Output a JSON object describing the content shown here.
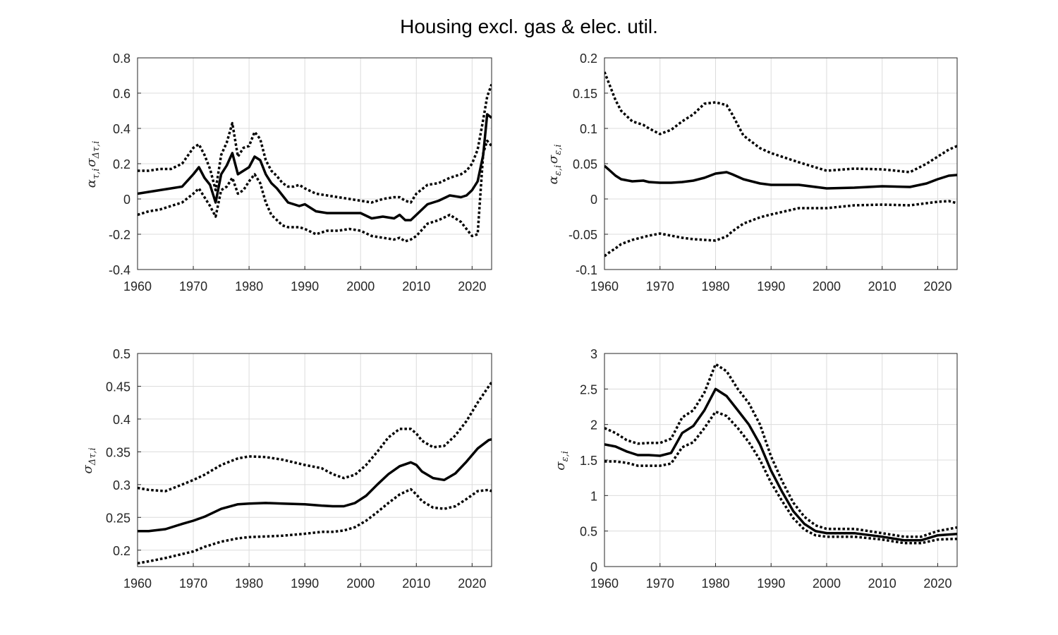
{
  "title": "Housing excl. gas & elec. util.",
  "chart_data": [
    {
      "type": "line",
      "ylabel": "α τ,i σ Δτ,i",
      "ylabel_parts": {
        "a": "α",
        "a_sub": "τ,i",
        "b": "σ",
        "b_sub": "Δτ,i"
      },
      "xlim": [
        1960,
        2023.5
      ],
      "ylim": [
        -0.4,
        0.8
      ],
      "xticks": [
        1960,
        1970,
        1980,
        1990,
        2000,
        2010,
        2020
      ],
      "yticks": [
        -0.4,
        -0.2,
        0,
        0.2,
        0.4,
        0.6,
        0.8
      ],
      "ytick_labels": [
        "-0.4",
        "-0.2",
        "0",
        "0.2",
        "0.4",
        "0.6",
        "0.8"
      ],
      "grid": true,
      "x": [
        1960,
        1962,
        1964,
        1966,
        1968,
        1970,
        1971,
        1972,
        1973,
        1974,
        1975,
        1976,
        1977,
        1978,
        1979,
        1980,
        1981,
        1982,
        1983,
        1984,
        1985,
        1986,
        1987,
        1988,
        1989,
        1990,
        1992,
        1994,
        1996,
        1998,
        2000,
        2002,
        2004,
        2006,
        2007,
        2008,
        2009,
        2010,
        2012,
        2014,
        2016,
        2018,
        2019,
        2020,
        2021,
        2022,
        2022.7,
        2023.5
      ],
      "series": [
        {
          "role": "median",
          "style": "solid",
          "values": [
            0.03,
            0.04,
            0.05,
            0.06,
            0.07,
            0.14,
            0.18,
            0.12,
            0.08,
            -0.02,
            0.14,
            0.19,
            0.26,
            0.14,
            0.16,
            0.18,
            0.24,
            0.22,
            0.14,
            0.09,
            0.06,
            0.02,
            -0.02,
            -0.03,
            -0.04,
            -0.03,
            -0.07,
            -0.08,
            -0.08,
            -0.08,
            -0.08,
            -0.11,
            -0.1,
            -0.11,
            -0.09,
            -0.12,
            -0.12,
            -0.09,
            -0.03,
            -0.01,
            0.02,
            0.01,
            0.02,
            0.05,
            0.1,
            0.25,
            0.48,
            0.46
          ]
        },
        {
          "role": "upper",
          "style": "dotted",
          "values": [
            0.16,
            0.16,
            0.17,
            0.17,
            0.2,
            0.29,
            0.31,
            0.25,
            0.17,
            0.05,
            0.25,
            0.32,
            0.43,
            0.24,
            0.29,
            0.3,
            0.38,
            0.34,
            0.22,
            0.16,
            0.13,
            0.09,
            0.07,
            0.07,
            0.08,
            0.06,
            0.03,
            0.02,
            0.01,
            0.0,
            -0.01,
            -0.02,
            0.0,
            0.01,
            0.01,
            -0.01,
            -0.02,
            0.03,
            0.08,
            0.09,
            0.12,
            0.14,
            0.16,
            0.2,
            0.28,
            0.45,
            0.58,
            0.65
          ]
        },
        {
          "role": "lower",
          "style": "dotted",
          "values": [
            -0.09,
            -0.07,
            -0.06,
            -0.04,
            -0.02,
            0.03,
            0.06,
            0.01,
            -0.04,
            -0.1,
            0.05,
            0.07,
            0.12,
            0.03,
            0.05,
            0.1,
            0.14,
            0.09,
            -0.02,
            -0.09,
            -0.12,
            -0.15,
            -0.16,
            -0.16,
            -0.16,
            -0.17,
            -0.2,
            -0.18,
            -0.18,
            -0.17,
            -0.18,
            -0.21,
            -0.22,
            -0.23,
            -0.22,
            -0.24,
            -0.23,
            -0.21,
            -0.14,
            -0.12,
            -0.09,
            -0.13,
            -0.17,
            -0.21,
            -0.2,
            0.26,
            0.33,
            0.3
          ]
        }
      ]
    },
    {
      "type": "line",
      "ylabel": "α ε,i σ ε,i",
      "ylabel_parts": {
        "a": "α",
        "a_sub": "ε,i",
        "b": "σ",
        "b_sub": "ε,i"
      },
      "xlim": [
        1960,
        2023.5
      ],
      "ylim": [
        -0.1,
        0.2
      ],
      "xticks": [
        1960,
        1970,
        1980,
        1990,
        2000,
        2010,
        2020
      ],
      "yticks": [
        -0.1,
        -0.05,
        0,
        0.05,
        0.1,
        0.15,
        0.2
      ],
      "ytick_labels": [
        "-0.1",
        "-0.05",
        "0",
        "0.05",
        "0.1",
        "0.15",
        "0.2"
      ],
      "grid": true,
      "x": [
        1960,
        1961,
        1962,
        1963,
        1965,
        1967,
        1968,
        1970,
        1972,
        1974,
        1976,
        1978,
        1980,
        1982,
        1983,
        1985,
        1988,
        1990,
        1995,
        2000,
        2005,
        2010,
        2015,
        2018,
        2020,
        2022,
        2023.5
      ],
      "series": [
        {
          "role": "median",
          "style": "solid",
          "values": [
            0.047,
            0.04,
            0.033,
            0.028,
            0.025,
            0.026,
            0.024,
            0.023,
            0.023,
            0.024,
            0.026,
            0.03,
            0.036,
            0.038,
            0.035,
            0.028,
            0.022,
            0.02,
            0.02,
            0.015,
            0.016,
            0.018,
            0.017,
            0.022,
            0.028,
            0.033,
            0.034
          ]
        },
        {
          "role": "upper",
          "style": "dotted",
          "values": [
            0.18,
            0.16,
            0.14,
            0.125,
            0.11,
            0.105,
            0.1,
            0.092,
            0.098,
            0.11,
            0.12,
            0.135,
            0.137,
            0.133,
            0.12,
            0.09,
            0.072,
            0.065,
            0.052,
            0.04,
            0.043,
            0.042,
            0.038,
            0.05,
            0.06,
            0.07,
            0.075
          ]
        },
        {
          "role": "lower",
          "style": "dotted",
          "values": [
            -0.081,
            -0.075,
            -0.07,
            -0.064,
            -0.058,
            -0.054,
            -0.052,
            -0.049,
            -0.052,
            -0.055,
            -0.057,
            -0.058,
            -0.059,
            -0.053,
            -0.046,
            -0.035,
            -0.026,
            -0.022,
            -0.013,
            -0.013,
            -0.009,
            -0.008,
            -0.009,
            -0.006,
            -0.004,
            -0.003,
            -0.006
          ]
        }
      ]
    },
    {
      "type": "line",
      "ylabel": "σ Δτ,i",
      "ylabel_parts": {
        "a": "σ",
        "a_sub": "Δτ,i",
        "b": "",
        "b_sub": ""
      },
      "xlim": [
        1960,
        2023.5
      ],
      "ylim": [
        0.175,
        0.5
      ],
      "xticks": [
        1960,
        1970,
        1980,
        1990,
        2000,
        2010,
        2020
      ],
      "yticks": [
        0.2,
        0.25,
        0.3,
        0.35,
        0.4,
        0.45,
        0.5
      ],
      "ytick_labels": [
        "0.2",
        "0.25",
        "0.3",
        "0.35",
        "0.4",
        "0.45",
        "0.5"
      ],
      "grid": true,
      "x": [
        1960,
        1962,
        1965,
        1968,
        1970,
        1972,
        1975,
        1978,
        1980,
        1983,
        1986,
        1990,
        1993,
        1995,
        1997,
        1999,
        2001,
        2003,
        2005,
        2007,
        2009,
        2010,
        2011,
        2013,
        2015,
        2017,
        2019,
        2021,
        2023,
        2023.5
      ],
      "series": [
        {
          "role": "median",
          "style": "solid",
          "values": [
            0.229,
            0.229,
            0.232,
            0.24,
            0.245,
            0.251,
            0.263,
            0.27,
            0.271,
            0.272,
            0.271,
            0.27,
            0.268,
            0.267,
            0.267,
            0.272,
            0.283,
            0.3,
            0.316,
            0.328,
            0.334,
            0.33,
            0.32,
            0.31,
            0.307,
            0.317,
            0.335,
            0.355,
            0.368,
            0.369
          ]
        },
        {
          "role": "upper",
          "style": "dotted",
          "values": [
            0.295,
            0.292,
            0.29,
            0.3,
            0.307,
            0.315,
            0.33,
            0.34,
            0.343,
            0.342,
            0.338,
            0.33,
            0.325,
            0.316,
            0.31,
            0.315,
            0.33,
            0.35,
            0.372,
            0.385,
            0.385,
            0.378,
            0.367,
            0.357,
            0.359,
            0.375,
            0.397,
            0.425,
            0.45,
            0.456
          ]
        },
        {
          "role": "lower",
          "style": "dotted",
          "values": [
            0.18,
            0.183,
            0.188,
            0.194,
            0.198,
            0.205,
            0.213,
            0.218,
            0.22,
            0.221,
            0.222,
            0.225,
            0.228,
            0.228,
            0.23,
            0.235,
            0.245,
            0.258,
            0.272,
            0.285,
            0.293,
            0.285,
            0.275,
            0.265,
            0.263,
            0.267,
            0.278,
            0.29,
            0.292,
            0.29
          ]
        }
      ]
    },
    {
      "type": "line",
      "ylabel": "σ ε,i",
      "ylabel_parts": {
        "a": "σ",
        "a_sub": "ε,i",
        "b": "",
        "b_sub": ""
      },
      "xlim": [
        1960,
        2023.5
      ],
      "ylim": [
        0,
        3
      ],
      "xticks": [
        1960,
        1970,
        1980,
        1990,
        2000,
        2010,
        2020
      ],
      "yticks": [
        0,
        0.5,
        1,
        1.5,
        2,
        2.5,
        3
      ],
      "ytick_labels": [
        "0",
        "0.5",
        "1",
        "1.5",
        "2",
        "2.5",
        "3"
      ],
      "grid": true,
      "x": [
        1960,
        1962,
        1964,
        1966,
        1968,
        1970,
        1972,
        1974,
        1976,
        1978,
        1980,
        1982,
        1984,
        1986,
        1988,
        1990,
        1992,
        1994,
        1996,
        1998,
        2000,
        2005,
        2010,
        2014,
        2017,
        2020,
        2023.5
      ],
      "series": [
        {
          "role": "median",
          "style": "solid",
          "values": [
            1.72,
            1.69,
            1.62,
            1.57,
            1.57,
            1.56,
            1.6,
            1.88,
            1.98,
            2.2,
            2.5,
            2.4,
            2.2,
            2.0,
            1.72,
            1.35,
            1.05,
            0.78,
            0.6,
            0.5,
            0.47,
            0.47,
            0.42,
            0.37,
            0.37,
            0.44,
            0.46
          ]
        },
        {
          "role": "upper",
          "style": "dotted",
          "values": [
            1.95,
            1.88,
            1.78,
            1.73,
            1.74,
            1.74,
            1.8,
            2.1,
            2.2,
            2.45,
            2.85,
            2.75,
            2.5,
            2.3,
            2.0,
            1.55,
            1.2,
            0.9,
            0.7,
            0.58,
            0.53,
            0.53,
            0.47,
            0.42,
            0.42,
            0.5,
            0.55
          ]
        },
        {
          "role": "lower",
          "style": "dotted",
          "values": [
            1.48,
            1.48,
            1.46,
            1.42,
            1.42,
            1.42,
            1.45,
            1.68,
            1.75,
            1.95,
            2.18,
            2.12,
            1.95,
            1.75,
            1.5,
            1.18,
            0.92,
            0.68,
            0.52,
            0.44,
            0.42,
            0.42,
            0.38,
            0.33,
            0.33,
            0.38,
            0.39
          ]
        }
      ]
    }
  ]
}
